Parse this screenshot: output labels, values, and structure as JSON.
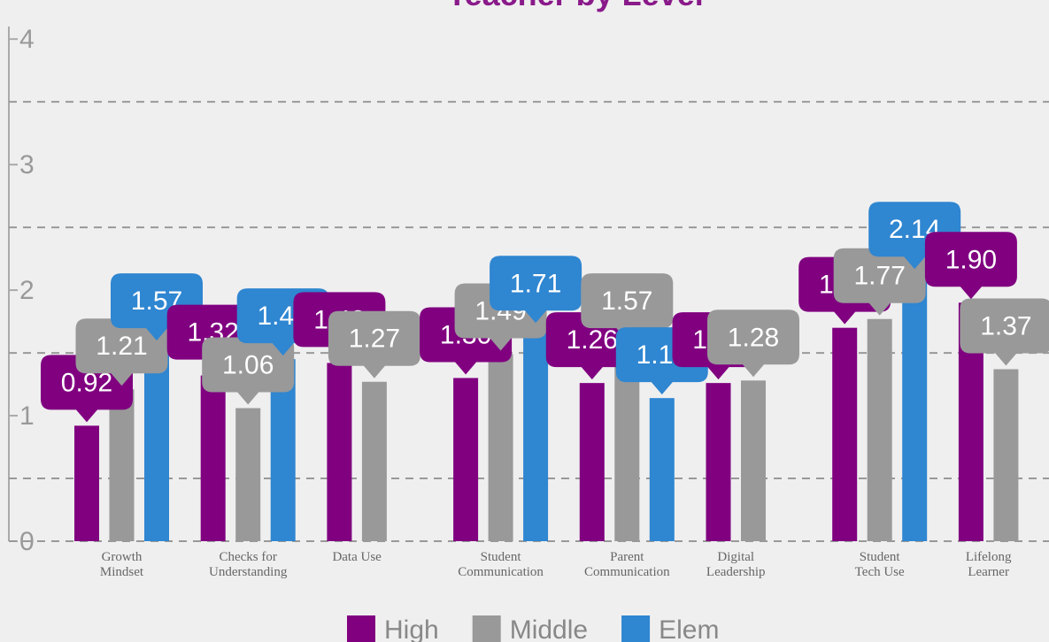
{
  "chart_data": {
    "type": "bar",
    "title": "Teacher by Level",
    "categories": [
      "Growth\nMindset",
      "Checks for\nUnderstanding",
      "Data Use",
      "Student\nCommunication",
      "Parent\nCommunication",
      "Digital\nLeadership",
      "Student\nTech Use",
      "Lifelong\nLearner"
    ],
    "series": [
      {
        "name": "High",
        "color": "#800080",
        "values": [
          0.92,
          1.32,
          1.42,
          1.3,
          1.26,
          1.26,
          1.7,
          1.9
        ],
        "value_labels": [
          "0.92",
          "1.32",
          "1.42",
          "1.30",
          "1.26",
          "1.26",
          "1.70",
          "1.90"
        ]
      },
      {
        "name": "Middle",
        "color": "#999999",
        "values": [
          1.21,
          1.06,
          1.27,
          1.49,
          1.57,
          1.28,
          1.77,
          1.37
        ],
        "value_labels": [
          "1.21",
          "1.06",
          "1.27",
          "1.49",
          "1.57",
          "1.28",
          "1.77",
          "1.37"
        ]
      },
      {
        "name": "Elem",
        "color": "#2f86d1",
        "values": [
          1.57,
          1.45,
          null,
          1.71,
          1.14,
          null,
          2.14,
          null
        ],
        "value_labels": [
          "1.57",
          "1.45",
          null,
          "1.71",
          "1.14",
          null,
          "2.14",
          null
        ]
      }
    ],
    "ylim": [
      0,
      4.1
    ],
    "yticks": [
      0,
      1,
      2,
      3,
      4
    ],
    "gridlines": [
      0.5,
      1.5,
      2.5,
      3.5
    ],
    "legend": "bottom"
  }
}
